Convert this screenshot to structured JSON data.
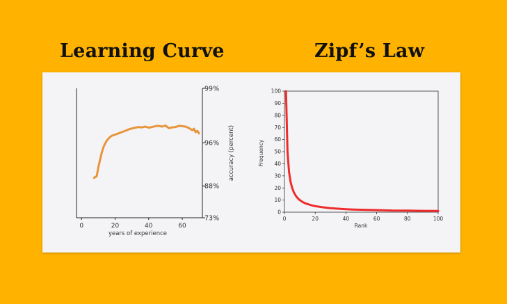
{
  "headings": {
    "left": "Learning Curve",
    "right": "Zipf’s Law"
  },
  "colors": {
    "background": "#FFB300",
    "panel": "#F4F4F6",
    "learning_line": "#E8943A",
    "zipf_line": "#EE2B2B"
  },
  "chart_data": [
    {
      "type": "line",
      "title": "Learning Curve",
      "xlabel": "years of experience",
      "ylabel": "accuracy (percent)",
      "xlim": [
        -3,
        72
      ],
      "x_ticks": [
        0,
        20,
        40,
        60
      ],
      "y_ticks": [
        "99%",
        "96%",
        "88%",
        "73%"
      ],
      "y_axis_side": "right",
      "y_scale": "nonlinear (error-rate spacing)",
      "grid": false,
      "series": [
        {
          "x": [
            7.5,
            8,
            9,
            10,
            11,
            12,
            13,
            14,
            15,
            16,
            17,
            18,
            20,
            22,
            24,
            26,
            28,
            30,
            32,
            34,
            36,
            38,
            40,
            42,
            44,
            46,
            48,
            50,
            52,
            54,
            56,
            58,
            60,
            62,
            64,
            66,
            67,
            68,
            69,
            70
          ],
          "y_pct": [
            90.2,
            90.4,
            90.6,
            92.5,
            93.8,
            94.8,
            95.5,
            95.9,
            96.2,
            96.4,
            96.55,
            96.65,
            96.75,
            96.85,
            96.95,
            97.05,
            97.15,
            97.22,
            97.28,
            97.32,
            97.3,
            97.35,
            97.28,
            97.32,
            97.38,
            97.4,
            97.35,
            97.42,
            97.25,
            97.3,
            97.32,
            97.4,
            97.38,
            97.35,
            97.25,
            97.1,
            97.2,
            96.95,
            97.05,
            96.85
          ]
        }
      ]
    },
    {
      "type": "line",
      "title": "Zipf’s Law",
      "xlabel": "Rank",
      "ylabel": "Frequency",
      "xlim": [
        0,
        100
      ],
      "ylim": [
        0,
        100
      ],
      "x_ticks": [
        0,
        20,
        40,
        60,
        80,
        100
      ],
      "y_ticks": [
        0,
        10,
        20,
        30,
        40,
        50,
        60,
        70,
        80,
        90,
        100
      ],
      "grid": false,
      "series": [
        {
          "x": [
            1,
            2,
            3,
            4,
            5,
            6,
            7,
            8,
            9,
            10,
            12,
            14,
            16,
            18,
            20,
            25,
            30,
            35,
            40,
            45,
            50,
            60,
            70,
            80,
            90,
            100
          ],
          "y": [
            100,
            50,
            33.3,
            25,
            20,
            16.7,
            14.3,
            12.5,
            11.1,
            10,
            8.3,
            7.1,
            6.3,
            5.6,
            5,
            4,
            3.3,
            2.9,
            2.5,
            2.2,
            2,
            1.7,
            1.4,
            1.3,
            1.1,
            1
          ]
        }
      ]
    }
  ]
}
